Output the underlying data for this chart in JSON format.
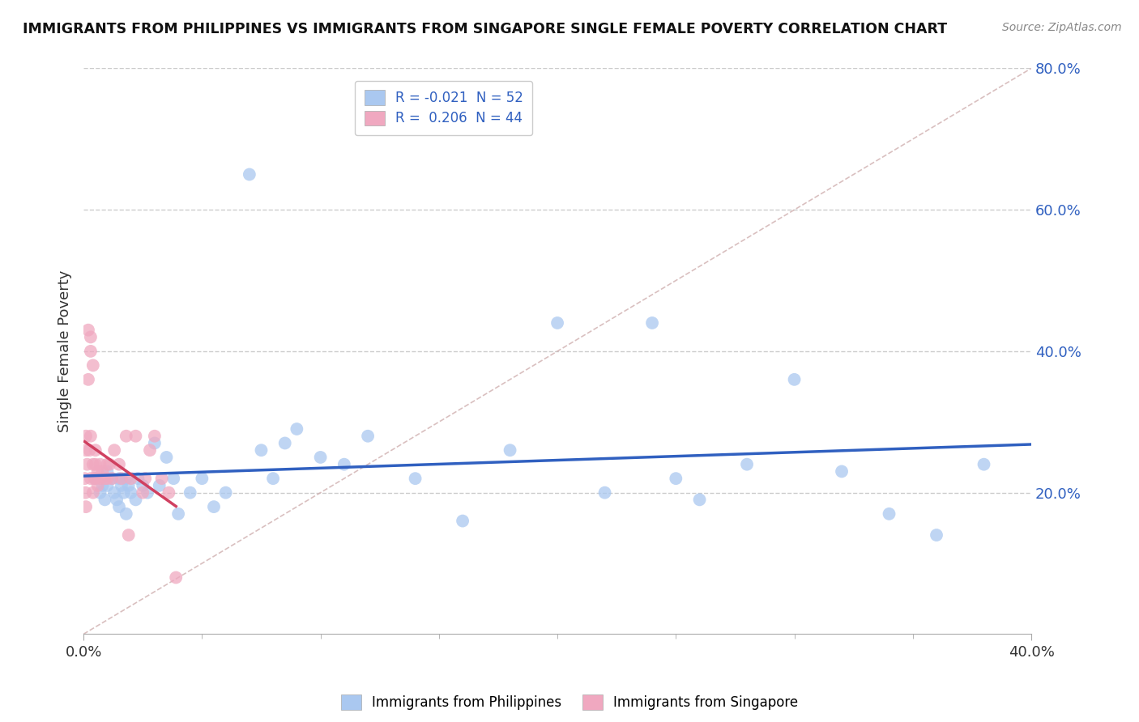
{
  "title": "IMMIGRANTS FROM PHILIPPINES VS IMMIGRANTS FROM SINGAPORE SINGLE FEMALE POVERTY CORRELATION CHART",
  "source": "Source: ZipAtlas.com",
  "ylabel": "Single Female Poverty",
  "xlabel": "",
  "r_philippines": -0.021,
  "n_philippines": 52,
  "r_singapore": 0.206,
  "n_singapore": 44,
  "xlim": [
    0.0,
    0.4
  ],
  "ylim": [
    0.0,
    0.8
  ],
  "xticks": [
    0.0,
    0.4
  ],
  "yticks": [
    0.2,
    0.4,
    0.6,
    0.8
  ],
  "xtick_labels": [
    "0.0%",
    "40.0%"
  ],
  "ytick_labels": [
    "20.0%",
    "40.0%",
    "60.0%",
    "80.0%"
  ],
  "xtick_minor": [
    0.05,
    0.1,
    0.15,
    0.2,
    0.25,
    0.3,
    0.35
  ],
  "color_philippines": "#aac8f0",
  "color_singapore": "#f0a8c0",
  "line_color_philippines": "#3060c0",
  "line_color_singapore": "#d04060",
  "legend_label_philippines": "Immigrants from Philippines",
  "legend_label_singapore": "Immigrants from Singapore",
  "philippines_x": [
    0.005,
    0.007,
    0.008,
    0.009,
    0.01,
    0.01,
    0.012,
    0.013,
    0.014,
    0.015,
    0.015,
    0.016,
    0.017,
    0.018,
    0.018,
    0.019,
    0.02,
    0.022,
    0.023,
    0.025,
    0.027,
    0.03,
    0.032,
    0.035,
    0.038,
    0.04,
    0.045,
    0.05,
    0.055,
    0.06,
    0.07,
    0.075,
    0.08,
    0.085,
    0.09,
    0.1,
    0.11,
    0.12,
    0.14,
    0.16,
    0.18,
    0.2,
    0.22,
    0.24,
    0.25,
    0.26,
    0.28,
    0.3,
    0.32,
    0.34,
    0.36,
    0.38
  ],
  "philippines_y": [
    0.22,
    0.2,
    0.21,
    0.19,
    0.23,
    0.21,
    0.22,
    0.2,
    0.19,
    0.22,
    0.18,
    0.21,
    0.2,
    0.22,
    0.17,
    0.21,
    0.2,
    0.19,
    0.22,
    0.21,
    0.2,
    0.27,
    0.21,
    0.25,
    0.22,
    0.17,
    0.2,
    0.22,
    0.18,
    0.2,
    0.65,
    0.26,
    0.22,
    0.27,
    0.29,
    0.25,
    0.24,
    0.28,
    0.22,
    0.16,
    0.26,
    0.44,
    0.2,
    0.44,
    0.22,
    0.19,
    0.24,
    0.36,
    0.23,
    0.17,
    0.14,
    0.24
  ],
  "singapore_x": [
    0.0005,
    0.0008,
    0.001,
    0.001,
    0.001,
    0.0015,
    0.002,
    0.002,
    0.0025,
    0.003,
    0.003,
    0.003,
    0.003,
    0.004,
    0.004,
    0.004,
    0.0045,
    0.005,
    0.005,
    0.005,
    0.006,
    0.006,
    0.007,
    0.007,
    0.008,
    0.009,
    0.01,
    0.01,
    0.011,
    0.012,
    0.013,
    0.015,
    0.016,
    0.018,
    0.019,
    0.02,
    0.022,
    0.025,
    0.026,
    0.028,
    0.03,
    0.033,
    0.036,
    0.039
  ],
  "singapore_y": [
    0.22,
    0.2,
    0.28,
    0.26,
    0.18,
    0.24,
    0.43,
    0.36,
    0.26,
    0.4,
    0.42,
    0.28,
    0.22,
    0.38,
    0.24,
    0.2,
    0.22,
    0.26,
    0.24,
    0.22,
    0.23,
    0.21,
    0.24,
    0.22,
    0.23,
    0.22,
    0.24,
    0.22,
    0.24,
    0.22,
    0.26,
    0.24,
    0.22,
    0.28,
    0.14,
    0.22,
    0.28,
    0.2,
    0.22,
    0.26,
    0.28,
    0.22,
    0.2,
    0.08
  ],
  "background_color": "#ffffff",
  "grid_color": "#cccccc",
  "grid_style": "--",
  "diagonal_color": "#d0b0b0",
  "diagonal_style": "--"
}
